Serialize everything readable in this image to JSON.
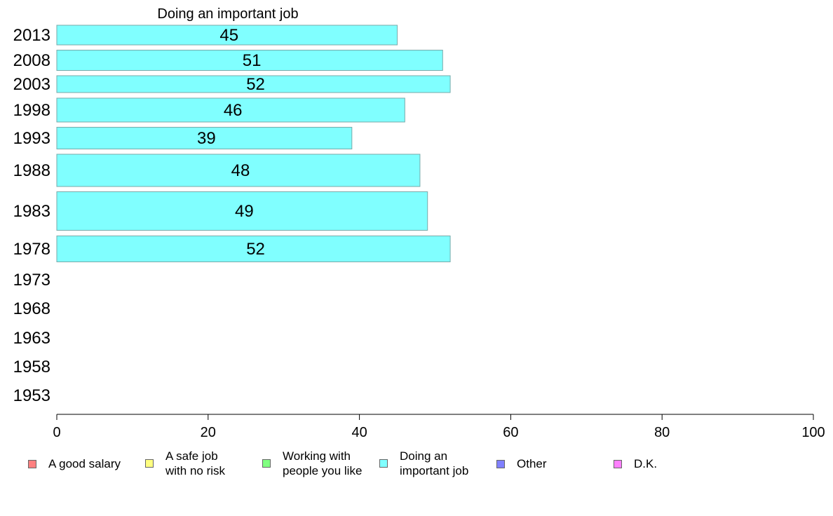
{
  "chart_data": {
    "type": "bar",
    "orientation": "horizontal",
    "title": "Doing an important job",
    "categories": [
      "2013",
      "2008",
      "2003",
      "1998",
      "1993",
      "1988",
      "1983",
      "1978",
      "1973",
      "1968",
      "1963",
      "1958",
      "1953"
    ],
    "series": [
      {
        "name": "Doing an important job",
        "color": "#80ffff",
        "values": [
          45,
          51,
          52,
          46,
          39,
          48,
          49,
          52,
          null,
          null,
          null,
          null,
          null
        ]
      }
    ],
    "xlim": [
      0,
      100
    ],
    "xticks": [
      0,
      20,
      40,
      60,
      80,
      100
    ],
    "grid": false,
    "legend_position": "bottom"
  },
  "legend": {
    "items": [
      {
        "label": "A good salary",
        "color": "#ff8080"
      },
      {
        "label": "A safe job\nwith no risk",
        "color": "#ffff80"
      },
      {
        "label": "Working with\npeople you like",
        "color": "#80ff80"
      },
      {
        "label": "Doing an\nimportant job",
        "color": "#80ffff"
      },
      {
        "label": "Other",
        "color": "#8080ff"
      },
      {
        "label": "D.K.",
        "color": "#ff80ff"
      }
    ]
  }
}
